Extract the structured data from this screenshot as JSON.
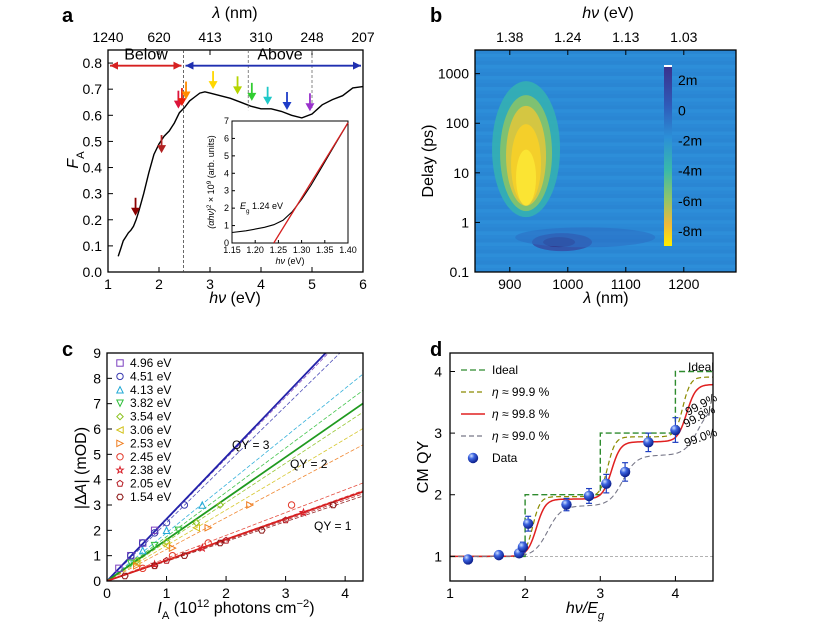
{
  "chart_data": [
    {
      "panel": "a",
      "type": "line",
      "xlabel": "hν (eV)",
      "ylabel": "F_A",
      "top_xlabel": "λ (nm)",
      "xlim": [
        1,
        6
      ],
      "ylim": [
        0,
        0.85
      ],
      "x_ticks": [
        "1",
        "2",
        "3",
        "4",
        "5",
        "6"
      ],
      "y_ticks": [
        "0.0",
        "0.1",
        "0.2",
        "0.3",
        "0.4",
        "0.5",
        "0.6",
        "0.7",
        "0.8"
      ],
      "top_ticks": [
        {
          "ev": 1.0,
          "label": "1240"
        },
        {
          "ev": 2.0,
          "label": "620"
        },
        {
          "ev": 3.0,
          "label": "413"
        },
        {
          "ev": 4.0,
          "label": "310"
        },
        {
          "ev": 5.0,
          "label": "248"
        },
        {
          "ev": 6.0,
          "label": "207"
        }
      ],
      "region_labels": [
        "Below",
        "Above"
      ],
      "region_boundary_ev": 2.48,
      "series": [
        {
          "x": [
            1.2,
            1.25,
            1.3,
            1.35,
            1.4,
            1.45,
            1.5,
            1.55,
            1.6,
            1.7,
            1.8,
            1.9,
            2.0,
            2.1,
            2.2,
            2.3,
            2.4,
            2.5,
            2.6,
            2.7,
            2.8,
            2.9,
            3.0,
            3.2,
            3.4,
            3.6,
            3.8,
            4.0,
            4.2,
            4.4,
            4.6,
            4.8,
            5.0,
            5.2,
            5.4,
            5.6,
            5.8,
            6.0
          ],
          "y": [
            0.06,
            0.09,
            0.12,
            0.135,
            0.15,
            0.16,
            0.175,
            0.2,
            0.23,
            0.3,
            0.38,
            0.45,
            0.49,
            0.52,
            0.54,
            0.57,
            0.61,
            0.63,
            0.655,
            0.67,
            0.685,
            0.69,
            0.685,
            0.675,
            0.665,
            0.65,
            0.635,
            0.625,
            0.625,
            0.615,
            0.6,
            0.59,
            0.605,
            0.64,
            0.66,
            0.675,
            0.705,
            0.71
          ]
        }
      ],
      "markers": [
        {
          "ev": 1.54,
          "y": 0.2,
          "color": "#8b0000"
        },
        {
          "ev": 2.05,
          "y": 0.44,
          "color": "#b22222"
        },
        {
          "ev": 2.38,
          "y": 0.61,
          "color": "#dc143c"
        },
        {
          "ev": 2.45,
          "y": 0.62,
          "color": "#e8210e"
        },
        {
          "ev": 2.53,
          "y": 0.645,
          "color": "#ff8c00"
        },
        {
          "ev": 3.06,
          "y": 0.685,
          "color": "#ffd700"
        },
        {
          "ev": 3.54,
          "y": 0.665,
          "color": "#b5d400"
        },
        {
          "ev": 3.82,
          "y": 0.64,
          "color": "#32cd32"
        },
        {
          "ev": 4.13,
          "y": 0.625,
          "color": "#1ec8c8"
        },
        {
          "ev": 4.51,
          "y": 0.605,
          "color": "#1e3cc8"
        },
        {
          "ev": 4.96,
          "y": 0.6,
          "color": "#9932cc"
        }
      ],
      "inset": {
        "xlabel": "hν (eV)",
        "ylabel": "(αhν)² × 10⁹ (arb. units)",
        "annotation": "E_g 1.24 eV",
        "xlim": [
          1.15,
          1.4
        ],
        "ylim": [
          0,
          7
        ],
        "x_ticks": [
          "1.15",
          "1.20",
          "1.25",
          "1.30",
          "1.35",
          "1.40"
        ],
        "y_ticks": [
          "0",
          "1",
          "2",
          "3",
          "4",
          "5",
          "6",
          "7"
        ],
        "curve": {
          "x": [
            1.15,
            1.18,
            1.2,
            1.22,
            1.24,
            1.26,
            1.28,
            1.3,
            1.32,
            1.34,
            1.36,
            1.38,
            1.4
          ],
          "y": [
            0.6,
            0.7,
            0.8,
            0.9,
            1.05,
            1.3,
            1.8,
            2.5,
            3.3,
            4.2,
            5.1,
            6.0,
            6.9
          ]
        },
        "fit": {
          "x": [
            1.24,
            1.4
          ],
          "y": [
            0,
            6.9
          ]
        }
      }
    },
    {
      "panel": "b",
      "type": "heatmap",
      "xlabel": "λ (nm)",
      "ylabel": "Delay (ps)",
      "top_xlabel": "hν (eV)",
      "xlim": [
        840,
        1290
      ],
      "ylim": [
        0.1,
        3000
      ],
      "y_scale": "log",
      "x_ticks": [
        "900",
        "1000",
        "1100",
        "1200"
      ],
      "y_ticks": [
        "0.1",
        "1",
        "10",
        "100",
        "1000"
      ],
      "top_ticks": [
        {
          "nm": 900,
          "label": "1.38"
        },
        {
          "nm": 1000,
          "label": "1.24"
        },
        {
          "nm": 1100,
          "label": "1.13"
        },
        {
          "nm": 1200,
          "label": "1.03"
        }
      ],
      "colorbar_labels": [
        "2m",
        "0",
        "-2m",
        "-4m",
        "-6m",
        "-8m"
      ],
      "colorbar_range": [
        -0.009,
        0.003
      ]
    },
    {
      "panel": "c",
      "type": "scatter",
      "xlabel": "I_A (10¹² photons cm⁻²)",
      "ylabel": "|ΔA| (mOD)",
      "xlim": [
        0,
        4.3
      ],
      "ylim": [
        0,
        9
      ],
      "x_ticks": [
        "0",
        "1",
        "2",
        "3",
        "4"
      ],
      "y_ticks": [
        "0",
        "1",
        "2",
        "3",
        "4",
        "5",
        "6",
        "7",
        "8",
        "9"
      ],
      "qy_labels": [
        "QY = 3",
        "QY = 2",
        "QY = 1"
      ],
      "series": [
        {
          "name": "4.96 eV",
          "color": "#7b3fbf",
          "shape": "square",
          "slope": 2.42,
          "x": [
            0.2,
            0.4,
            0.6,
            0.8
          ],
          "y": [
            0.5,
            1.0,
            1.5,
            2.0
          ]
        },
        {
          "name": "4.51 eV",
          "color": "#3a3ab0",
          "shape": "circle",
          "slope": 2.3,
          "x": [
            0.4,
            0.6,
            0.8,
            1.0,
            1.3
          ],
          "y": [
            1.0,
            1.5,
            1.9,
            2.3,
            3.0
          ]
        },
        {
          "name": "4.13 eV",
          "color": "#21a9d6",
          "shape": "triangle-up",
          "slope": 1.9,
          "x": [
            0.6,
            1.0,
            1.6
          ],
          "y": [
            1.2,
            2.0,
            3.0
          ]
        },
        {
          "name": "3.82 eV",
          "color": "#2fbf3a",
          "shape": "triangle-down",
          "slope": 1.75,
          "x": [
            0.4,
            0.8,
            1.2
          ],
          "y": [
            0.7,
            1.4,
            2.0
          ]
        },
        {
          "name": "3.54 eV",
          "color": "#8cc21f",
          "shape": "diamond",
          "slope": 1.55,
          "x": [
            0.5,
            1.0,
            1.5,
            1.9
          ],
          "y": [
            0.8,
            1.55,
            2.3,
            3.0
          ]
        },
        {
          "name": "3.06 eV",
          "color": "#d2c21a",
          "shape": "triangle-left",
          "slope": 1.4,
          "x": [
            0.5,
            1.0,
            1.5
          ],
          "y": [
            0.7,
            1.4,
            2.1
          ]
        },
        {
          "name": "2.53 eV",
          "color": "#ef7d1f",
          "shape": "triangle-right",
          "slope": 1.25,
          "x": [
            0.5,
            1.1,
            1.7,
            2.4
          ],
          "y": [
            0.6,
            1.3,
            2.1,
            3.0
          ]
        },
        {
          "name": "2.45 eV",
          "color": "#e33a2b",
          "shape": "circle",
          "slope": 0.9,
          "x": [
            0.6,
            1.1,
            1.7,
            3.1
          ],
          "y": [
            0.5,
            1.0,
            1.5,
            3.0
          ]
        },
        {
          "name": "2.38 eV",
          "color": "#d8202a",
          "shape": "star",
          "slope": 0.83,
          "x": [
            0.8,
            1.6,
            3.3
          ],
          "y": [
            0.65,
            1.3,
            2.7
          ]
        },
        {
          "name": "2.05 eV",
          "color": "#b51a22",
          "shape": "pentagon",
          "slope": 0.8,
          "x": [
            1.0,
            2.0,
            3.0
          ],
          "y": [
            0.8,
            1.6,
            2.4
          ]
        },
        {
          "name": "1.54 eV",
          "color": "#8b1414",
          "shape": "hexagon",
          "slope": 0.78,
          "x": [
            0.3,
            0.8,
            1.3,
            1.9,
            2.6,
            3.8
          ],
          "y": [
            0.2,
            0.6,
            1.0,
            1.5,
            2.0,
            3.0
          ]
        }
      ],
      "fit_lines": [
        {
          "label": "QY = 3",
          "slope": 2.45,
          "color": "#2222aa"
        },
        {
          "label": "QY = 2",
          "slope": 1.63,
          "color": "#1f9a1f"
        },
        {
          "label": "QY = 1",
          "slope": 0.82,
          "color": "#d62020"
        }
      ]
    },
    {
      "panel": "d",
      "type": "line",
      "xlabel": "hν/E_g",
      "ylabel": "CM QY",
      "xlim": [
        1,
        4.5
      ],
      "ylim": [
        0.6,
        4.3
      ],
      "x_ticks": [
        "1",
        "2",
        "3",
        "4"
      ],
      "y_ticks": [
        "1",
        "2",
        "3",
        "4"
      ],
      "legend": [
        "Ideal",
        "η ≈ 99.9 %",
        "η ≈ 99.8 %",
        "η ≈ 99.0 %",
        "Data"
      ],
      "curve_labels": [
        "Ideal",
        "99.9%",
        "99.8%",
        "99.0%"
      ],
      "data_points": [
        {
          "x": 1.24,
          "y": 0.95,
          "err": 0.03
        },
        {
          "x": 1.65,
          "y": 1.02,
          "err": 0.03
        },
        {
          "x": 1.92,
          "y": 1.05,
          "err": 0.05
        },
        {
          "x": 1.97,
          "y": 1.15,
          "err": 0.08
        },
        {
          "x": 2.04,
          "y": 1.53,
          "err": 0.12
        },
        {
          "x": 2.55,
          "y": 1.84,
          "err": 0.1
        },
        {
          "x": 2.85,
          "y": 1.98,
          "err": 0.12
        },
        {
          "x": 3.08,
          "y": 2.18,
          "err": 0.15
        },
        {
          "x": 3.33,
          "y": 2.37,
          "err": 0.15
        },
        {
          "x": 3.64,
          "y": 2.85,
          "err": 0.15
        },
        {
          "x": 4.0,
          "y": 3.05,
          "err": 0.2
        }
      ],
      "colors": {
        "ideal": "#2e8b2e",
        "eta999": "#8b8b00",
        "eta998": "#e02020",
        "eta990": "#777788",
        "data": "#1f3fc0"
      }
    }
  ]
}
